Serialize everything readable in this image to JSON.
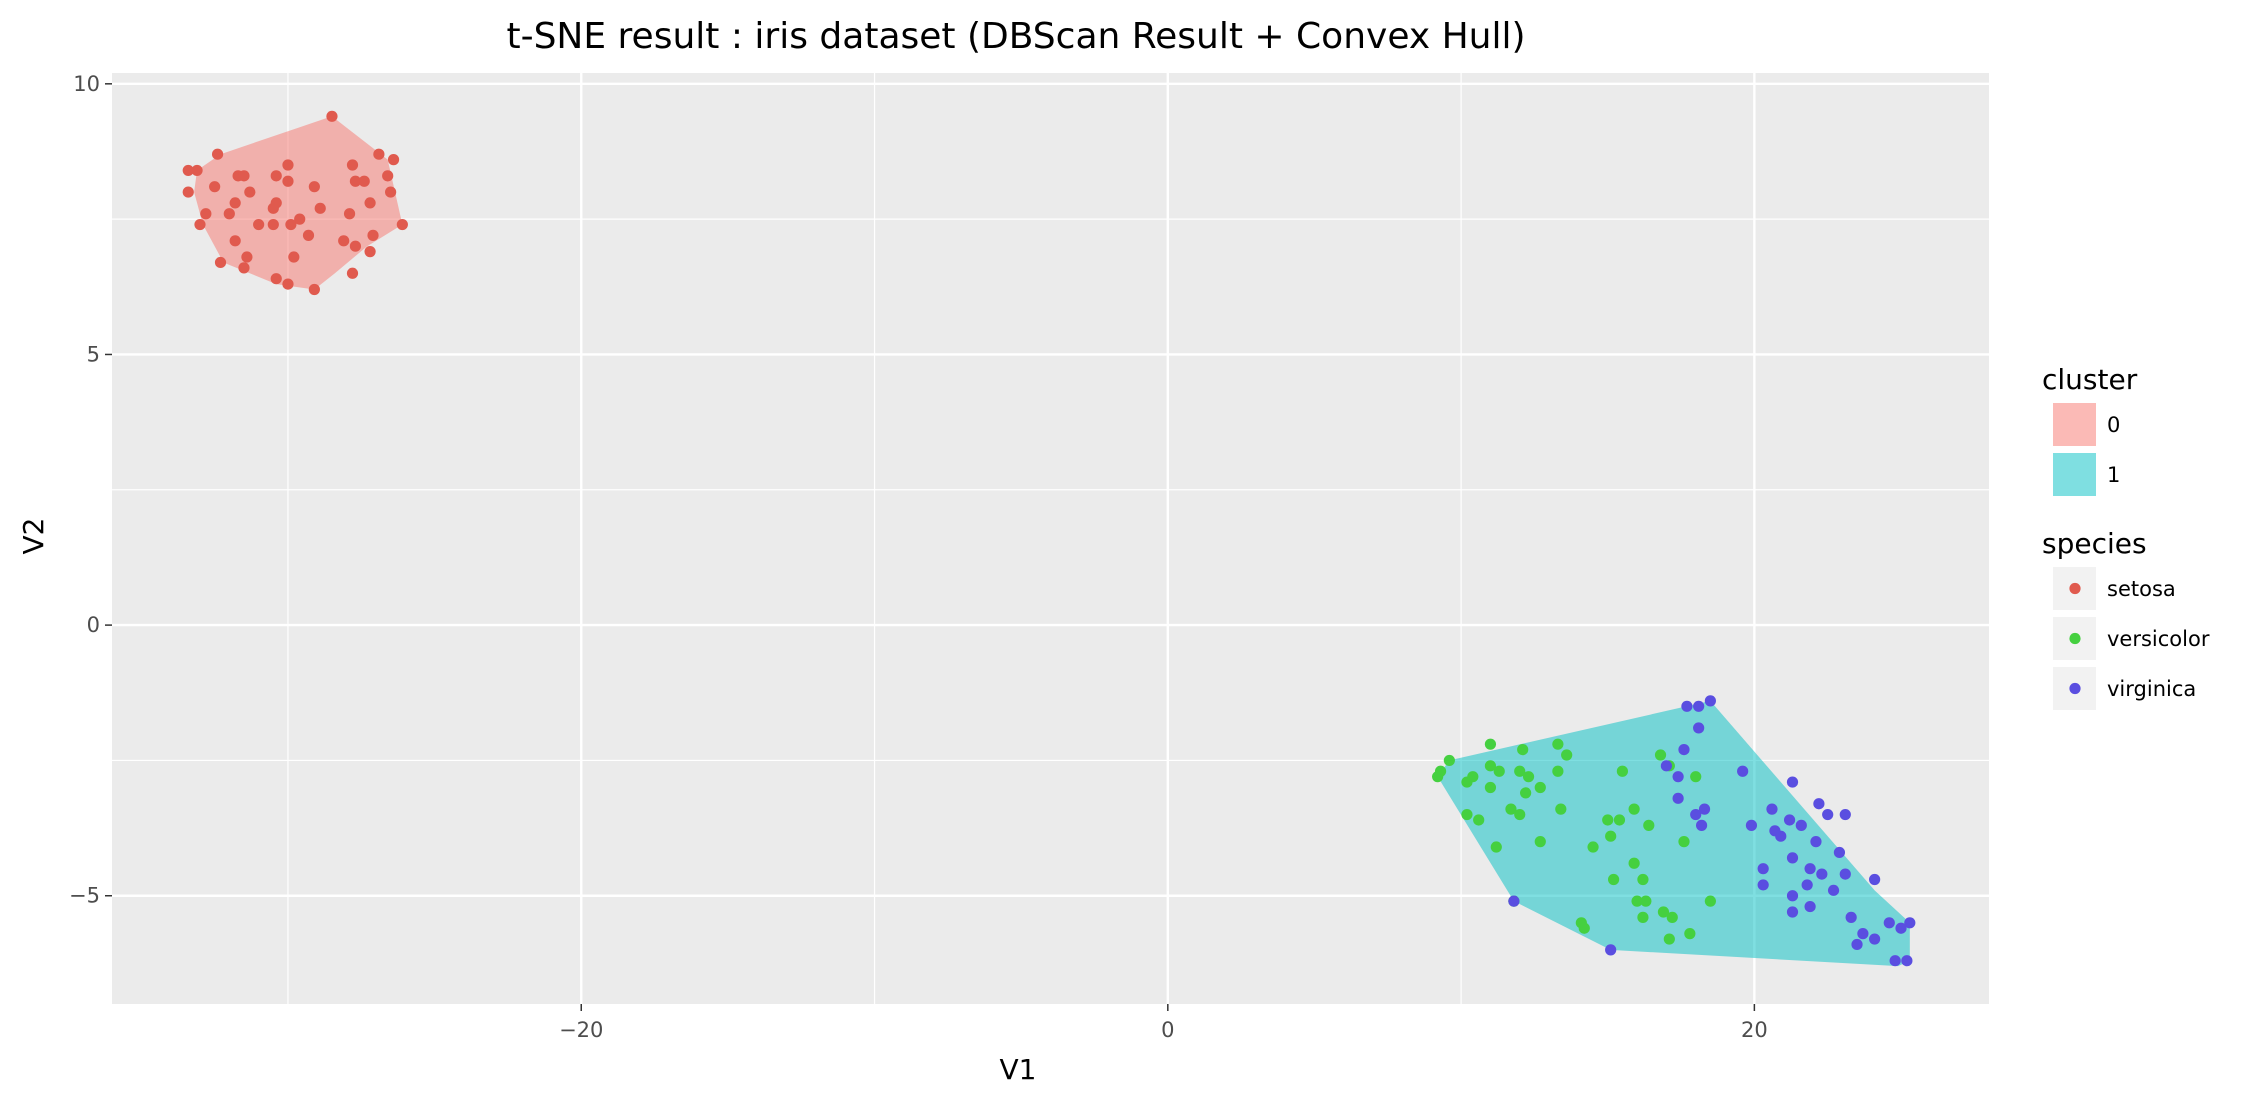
{
  "chart_data": {
    "type": "scatter",
    "title": "t-SNE result : iris dataset (DBScan Result + Convex Hull)",
    "xlabel": "V1",
    "ylabel": "V2",
    "xlim": [
      -36,
      28
    ],
    "ylim": [
      -7,
      10.2
    ],
    "x_ticks": [
      {
        "value": -20,
        "label": "−20"
      },
      {
        "value": 0,
        "label": "0"
      },
      {
        "value": 20,
        "label": "20"
      }
    ],
    "x_minor": [
      -30,
      -10,
      10
    ],
    "y_ticks": [
      {
        "value": -5,
        "label": "−5"
      },
      {
        "value": 0,
        "label": "0"
      },
      {
        "value": 5,
        "label": "5"
      },
      {
        "value": 10,
        "label": "10"
      }
    ],
    "y_minor": [
      -2.5,
      2.5,
      7.5
    ],
    "grid": true,
    "legend_placement": "right",
    "legend_cluster_title": "cluster",
    "legend_species_title": "species",
    "clusters": [
      {
        "name": "0",
        "color": "#F8766D",
        "hull": [
          [
            -33.1,
            8.4
          ],
          [
            -32.3,
            8.7
          ],
          [
            -28.5,
            9.4
          ],
          [
            -26.6,
            8.6
          ],
          [
            -26.1,
            7.4
          ],
          [
            -27.3,
            7.0
          ],
          [
            -28.4,
            6.5
          ],
          [
            -29.1,
            6.2
          ],
          [
            -30.4,
            6.3
          ],
          [
            -32.2,
            6.7
          ],
          [
            -32.9,
            7.4
          ],
          [
            -33.2,
            8.0
          ]
        ]
      },
      {
        "name": "1",
        "color": "#00BFC4",
        "hull": [
          [
            9.2,
            -2.8
          ],
          [
            9.6,
            -2.5
          ],
          [
            18.5,
            -1.4
          ],
          [
            24.1,
            -4.9
          ],
          [
            25.3,
            -5.5
          ],
          [
            25.3,
            -6.2
          ],
          [
            24.9,
            -6.3
          ],
          [
            15.1,
            -6.0
          ],
          [
            11.8,
            -5.1
          ]
        ]
      }
    ],
    "series": [
      {
        "name": "setosa",
        "color": "#E05A4E",
        "points": [
          [
            -28.5,
            9.4
          ],
          [
            -32.4,
            8.7
          ],
          [
            -33.1,
            8.4
          ],
          [
            -33.4,
            8.4
          ],
          [
            -30.0,
            8.5
          ],
          [
            -27.8,
            8.5
          ],
          [
            -26.9,
            8.7
          ],
          [
            -26.4,
            8.6
          ],
          [
            -31.7,
            8.3
          ],
          [
            -31.5,
            8.3
          ],
          [
            -30.4,
            8.3
          ],
          [
            -30.0,
            8.2
          ],
          [
            -27.7,
            8.2
          ],
          [
            -27.4,
            8.2
          ],
          [
            -26.6,
            8.3
          ],
          [
            -32.5,
            8.1
          ],
          [
            -31.3,
            8.0
          ],
          [
            -29.1,
            8.1
          ],
          [
            -33.4,
            8.0
          ],
          [
            -26.5,
            8.0
          ],
          [
            -31.8,
            7.8
          ],
          [
            -30.4,
            7.8
          ],
          [
            -30.5,
            7.7
          ],
          [
            -28.9,
            7.7
          ],
          [
            -27.2,
            7.8
          ],
          [
            -32.8,
            7.6
          ],
          [
            -32.0,
            7.6
          ],
          [
            -27.9,
            7.6
          ],
          [
            -31.0,
            7.4
          ],
          [
            -30.5,
            7.4
          ],
          [
            -29.9,
            7.4
          ],
          [
            -29.6,
            7.5
          ],
          [
            -33.0,
            7.4
          ],
          [
            -26.1,
            7.4
          ],
          [
            -31.8,
            7.1
          ],
          [
            -29.3,
            7.2
          ],
          [
            -28.1,
            7.1
          ],
          [
            -27.7,
            7.0
          ],
          [
            -27.2,
            6.9
          ],
          [
            -27.1,
            7.2
          ],
          [
            -31.4,
            6.8
          ],
          [
            -29.8,
            6.8
          ],
          [
            -32.3,
            6.7
          ],
          [
            -31.5,
            6.6
          ],
          [
            -27.8,
            6.5
          ],
          [
            -30.4,
            6.4
          ],
          [
            -30.0,
            6.3
          ],
          [
            -29.1,
            6.2
          ]
        ]
      },
      {
        "name": "versicolor",
        "color": "#45D040",
        "points": [
          [
            9.2,
            -2.8
          ],
          [
            9.3,
            -2.7
          ],
          [
            9.6,
            -2.5
          ],
          [
            10.2,
            -2.9
          ],
          [
            10.4,
            -2.8
          ],
          [
            11.0,
            -2.2
          ],
          [
            11.0,
            -2.6
          ],
          [
            11.3,
            -2.7
          ],
          [
            12.1,
            -2.3
          ],
          [
            13.3,
            -2.2
          ],
          [
            13.6,
            -2.4
          ],
          [
            12.0,
            -2.7
          ],
          [
            12.3,
            -2.8
          ],
          [
            12.7,
            -3.0
          ],
          [
            13.3,
            -2.7
          ],
          [
            11.0,
            -3.0
          ],
          [
            12.2,
            -3.1
          ],
          [
            10.2,
            -3.5
          ],
          [
            10.6,
            -3.6
          ],
          [
            11.7,
            -3.4
          ],
          [
            12.0,
            -3.5
          ],
          [
            13.4,
            -3.4
          ],
          [
            15.5,
            -2.7
          ],
          [
            16.8,
            -2.4
          ],
          [
            17.1,
            -2.6
          ],
          [
            18.0,
            -2.8
          ],
          [
            15.0,
            -3.6
          ],
          [
            15.4,
            -3.6
          ],
          [
            15.9,
            -3.4
          ],
          [
            16.4,
            -3.7
          ],
          [
            15.1,
            -3.9
          ],
          [
            11.2,
            -4.1
          ],
          [
            12.7,
            -4.0
          ],
          [
            14.5,
            -4.1
          ],
          [
            17.6,
            -4.0
          ],
          [
            15.9,
            -4.4
          ],
          [
            15.2,
            -4.7
          ],
          [
            16.2,
            -4.7
          ],
          [
            11.8,
            -5.1
          ],
          [
            16.0,
            -5.1
          ],
          [
            16.3,
            -5.1
          ],
          [
            18.5,
            -5.1
          ],
          [
            16.9,
            -5.3
          ],
          [
            14.1,
            -5.5
          ],
          [
            14.2,
            -5.6
          ],
          [
            17.2,
            -5.4
          ],
          [
            16.2,
            -5.4
          ],
          [
            17.8,
            -5.7
          ],
          [
            17.1,
            -5.8
          ]
        ]
      },
      {
        "name": "virginica",
        "color": "#5A4EE0",
        "points": [
          [
            17.7,
            -1.5
          ],
          [
            18.1,
            -1.5
          ],
          [
            18.5,
            -1.4
          ],
          [
            18.1,
            -1.9
          ],
          [
            17.6,
            -2.3
          ],
          [
            17.0,
            -2.6
          ],
          [
            17.4,
            -2.8
          ],
          [
            19.6,
            -2.7
          ],
          [
            21.3,
            -2.9
          ],
          [
            17.4,
            -3.2
          ],
          [
            18.0,
            -3.5
          ],
          [
            18.3,
            -3.4
          ],
          [
            18.2,
            -3.7
          ],
          [
            20.6,
            -3.4
          ],
          [
            21.2,
            -3.6
          ],
          [
            21.6,
            -3.7
          ],
          [
            22.2,
            -3.3
          ],
          [
            22.5,
            -3.5
          ],
          [
            23.1,
            -3.5
          ],
          [
            19.9,
            -3.7
          ],
          [
            20.7,
            -3.8
          ],
          [
            20.9,
            -3.9
          ],
          [
            22.1,
            -4.0
          ],
          [
            22.9,
            -4.2
          ],
          [
            21.3,
            -4.3
          ],
          [
            20.3,
            -4.5
          ],
          [
            21.9,
            -4.5
          ],
          [
            22.3,
            -4.6
          ],
          [
            23.1,
            -4.6
          ],
          [
            20.3,
            -4.8
          ],
          [
            21.8,
            -4.8
          ],
          [
            22.7,
            -4.9
          ],
          [
            24.1,
            -4.7
          ],
          [
            21.3,
            -5.0
          ],
          [
            21.9,
            -5.2
          ],
          [
            21.3,
            -5.3
          ],
          [
            23.3,
            -5.4
          ],
          [
            24.6,
            -5.5
          ],
          [
            25.3,
            -5.5
          ],
          [
            25.0,
            -5.6
          ],
          [
            23.7,
            -5.7
          ],
          [
            24.1,
            -5.8
          ],
          [
            23.5,
            -5.9
          ],
          [
            24.8,
            -6.2
          ],
          [
            25.2,
            -6.2
          ],
          [
            15.1,
            -6.0
          ],
          [
            11.8,
            -5.1
          ]
        ]
      }
    ]
  }
}
